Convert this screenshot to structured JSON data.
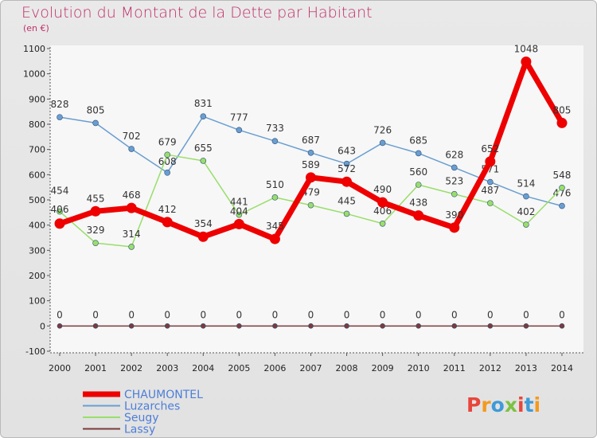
{
  "page": {
    "title": "Evolution du Montant de la Dette par Habitant",
    "unit": "(en €)"
  },
  "logo": {
    "text": "Proxiti",
    "colors": [
      "#e8463c",
      "#f39a1f",
      "#3f9ad8",
      "#7cc242",
      "#e8463c",
      "#3f9ad8",
      "#f39a1f"
    ]
  },
  "chart_data": {
    "type": "line",
    "title": "Evolution du Montant de la Dette par Habitant",
    "ylabel": "(en €)",
    "xlabel": "",
    "ylim": [
      -100,
      1100
    ],
    "y_ticks": [
      -100,
      0,
      100,
      200,
      300,
      400,
      500,
      600,
      700,
      800,
      900,
      1000,
      1100
    ],
    "categories": [
      "2000",
      "2001",
      "2002",
      "2003",
      "2004",
      "2005",
      "2006",
      "2007",
      "2008",
      "2009",
      "2010",
      "2011",
      "2012",
      "2013",
      "2014"
    ],
    "grid": false,
    "legend": "bottom-left",
    "series": [
      {
        "name": "Luzarches",
        "color": "#6a9ed0",
        "values": [
          828,
          805,
          702,
          608,
          831,
          777,
          733,
          687,
          643,
          726,
          685,
          628,
          571,
          514,
          476
        ]
      },
      {
        "name": "Seugy",
        "color": "#99de6a",
        "values": [
          454,
          329,
          314,
          679,
          655,
          441,
          510,
          479,
          445,
          406,
          560,
          523,
          487,
          402,
          548
        ]
      },
      {
        "name": "Lassy",
        "color": "#7b3b3b",
        "values": [
          0,
          0,
          0,
          0,
          0,
          0,
          0,
          0,
          0,
          0,
          0,
          0,
          0,
          0,
          0
        ]
      },
      {
        "name": "CHAUMONTEL",
        "color": "#ee0000",
        "values": [
          406,
          455,
          468,
          412,
          354,
          404,
          345,
          589,
          572,
          490,
          438,
          390,
          652,
          1048,
          805
        ]
      }
    ]
  }
}
